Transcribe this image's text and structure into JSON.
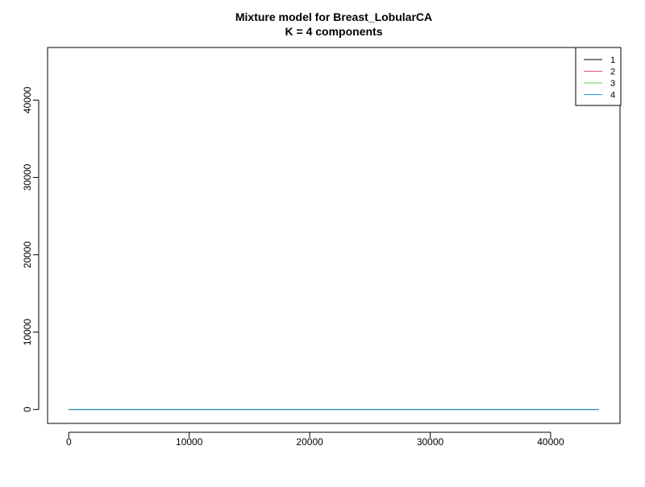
{
  "chart_data": {
    "type": "line",
    "title": "Mixture model for Breast_LobularCA",
    "subtitle": "K = 4 components",
    "xlabel": "",
    "ylabel": "",
    "xlim": [
      -1760,
      45760
    ],
    "ylim": [
      -1800,
      46800
    ],
    "x_ticks": [
      0,
      10000,
      20000,
      30000,
      40000
    ],
    "y_ticks": [
      0,
      10000,
      20000,
      30000,
      40000
    ],
    "grid": false,
    "legend": {
      "position": "top-right"
    },
    "series": [
      {
        "name": "1",
        "color": "#000000",
        "x": [
          0,
          44000
        ],
        "y": [
          0,
          0
        ]
      },
      {
        "name": "2",
        "color": "#DF536B",
        "x": [
          0,
          44000
        ],
        "y": [
          0,
          0
        ]
      },
      {
        "name": "3",
        "color": "#61D04F",
        "x": [
          0,
          44000
        ],
        "y": [
          0,
          0
        ]
      },
      {
        "name": "4",
        "color": "#2297E6",
        "x": [
          0,
          44000
        ],
        "y": [
          0,
          0
        ]
      }
    ]
  }
}
